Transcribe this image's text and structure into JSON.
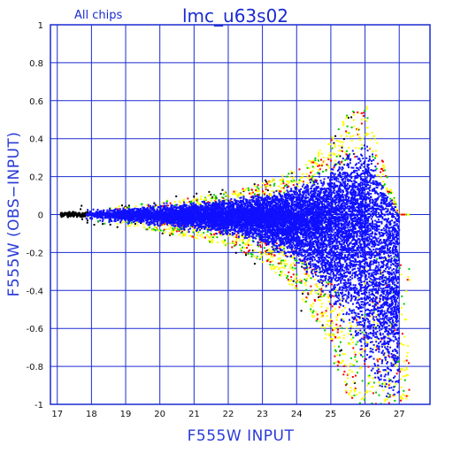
{
  "chart_data": {
    "type": "scatter",
    "title": "lmc_u63s02",
    "subtitle": "All chips",
    "xlabel": "F555W INPUT",
    "ylabel": "F555W (OBS−INPUT)",
    "xlim": [
      16.8,
      27.9
    ],
    "ylim": [
      -1,
      1
    ],
    "xticks": [
      17,
      18,
      19,
      20,
      21,
      22,
      23,
      24,
      25,
      26,
      27
    ],
    "yticks": [
      1,
      0.8,
      0.6,
      0.4,
      0.2,
      0,
      -0.2,
      -0.4,
      -0.6,
      -0.8,
      -1
    ],
    "grid": true,
    "series": [
      {
        "color": "#1010ff"
      },
      {
        "color": "#ffff00"
      },
      {
        "color": "#00cc00"
      },
      {
        "color": "#ff0000"
      },
      {
        "color": "#000000"
      }
    ],
    "envelope": {
      "x": [
        17.0,
        18.0,
        19.0,
        20.0,
        21.0,
        22.0,
        23.0,
        24.0,
        24.5,
        25.0,
        25.5,
        26.0,
        26.5,
        27.0
      ],
      "upper": [
        0.02,
        0.03,
        0.03,
        0.05,
        0.06,
        0.08,
        0.11,
        0.16,
        0.2,
        0.27,
        0.36,
        0.4,
        0.2,
        0.0
      ],
      "lower": [
        -0.02,
        -0.03,
        -0.04,
        -0.06,
        -0.08,
        -0.11,
        -0.16,
        -0.26,
        -0.36,
        -0.48,
        -0.62,
        -0.82,
        -0.96,
        -1.0
      ]
    },
    "black_cluster": {
      "x": [
        17.1,
        17.9
      ],
      "y": [
        -0.02,
        0.02
      ]
    }
  },
  "colors": {
    "axis": "#1a2bd0",
    "grid": "#1a2bd0"
  }
}
